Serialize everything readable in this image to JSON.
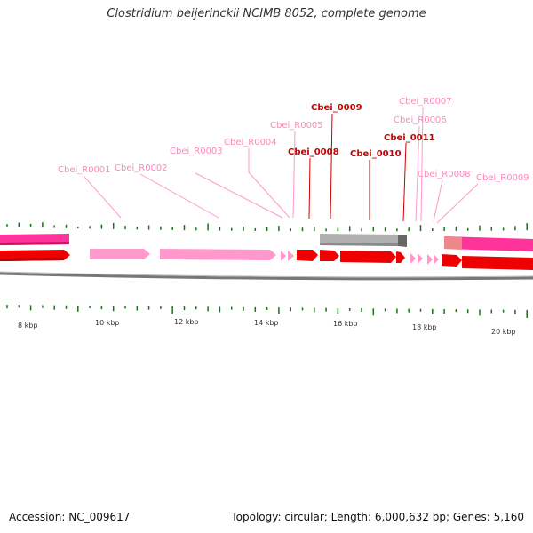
{
  "title": "Clostridium beijerinckii NCIMB 8052, complete genome",
  "footer": {
    "accession": "Accession: NC_009617",
    "topology": "Topology: circular; Length: 6,000,632 bp; Genes: 5,160"
  },
  "colors": {
    "gene_red": "#ee0000",
    "gene_pink": "#ff99cc",
    "gene_magenta": "#ff3399",
    "gene_gray": "#b0b0b0",
    "label_red": "#cc0000",
    "label_pink": "#ff88bb",
    "tick_green": "#117711",
    "scale_gray": "#777777"
  },
  "scale_labels": [
    "8 kbp",
    "10 kbp",
    "12 kbp",
    "14 kbp",
    "16 kbp",
    "18 kbp",
    "20 kbp"
  ],
  "gene_labels": [
    {
      "id": "r0001",
      "text": "Cbei_R0001",
      "kind": "rna"
    },
    {
      "id": "r0002",
      "text": "Cbei_R0002",
      "kind": "rna"
    },
    {
      "id": "r0003",
      "text": "Cbei_R0003",
      "kind": "rna"
    },
    {
      "id": "r0004",
      "text": "Cbei_R0004",
      "kind": "rna"
    },
    {
      "id": "r0005",
      "text": "Cbei_R0005",
      "kind": "rna"
    },
    {
      "id": "0008",
      "text": "Cbei_0008",
      "kind": "cds"
    },
    {
      "id": "0009",
      "text": "Cbei_0009",
      "kind": "cds"
    },
    {
      "id": "0010",
      "text": "Cbei_0010",
      "kind": "cds"
    },
    {
      "id": "0011",
      "text": "Cbei_0011",
      "kind": "cds"
    },
    {
      "id": "r0006",
      "text": "Cbei_R0006",
      "kind": "rna"
    },
    {
      "id": "r0007",
      "text": "Cbei_R0007",
      "kind": "rna"
    },
    {
      "id": "r0008",
      "text": "Cbei_R0008",
      "kind": "rna"
    },
    {
      "id": "r0009",
      "text": "Cbei_R0009",
      "kind": "rna"
    }
  ]
}
